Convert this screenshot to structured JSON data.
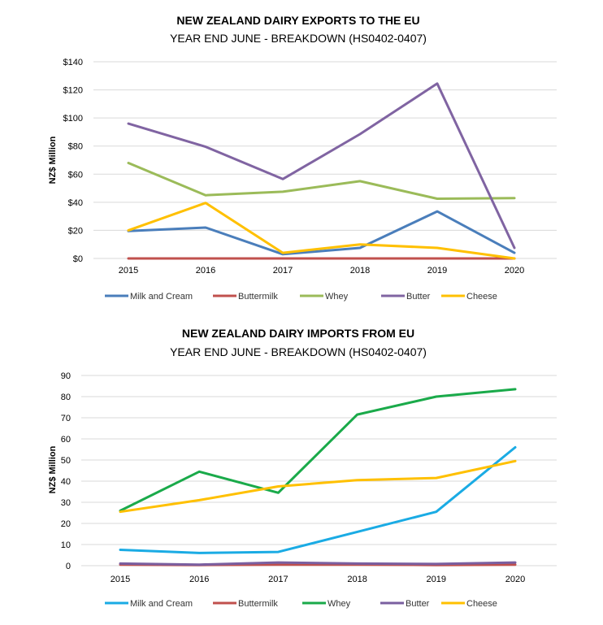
{
  "chart_data": [
    {
      "type": "line",
      "title": "NEW ZEALAND DAIRY EXPORTS TO THE EU",
      "subtitle": "YEAR END JUNE - BREAKDOWN (HS0402-0407)",
      "xlabel": "",
      "ylabel": "NZ$ Million",
      "categories": [
        "2015",
        "2016",
        "2017",
        "2018",
        "2019",
        "2020"
      ],
      "ylim": [
        0,
        140
      ],
      "yticks": [
        0,
        20,
        40,
        60,
        80,
        100,
        120,
        140
      ],
      "ytick_labels": [
        "$0",
        "$20",
        "$40",
        "$60",
        "$80",
        "$100",
        "$120",
        "$140"
      ],
      "grid": true,
      "legend": "bottom",
      "series": [
        {
          "name": "Milk and Cream",
          "color": "#4a7ebb",
          "values": [
            19.5,
            22,
            3,
            7.5,
            33.5,
            4
          ]
        },
        {
          "name": "Buttermilk",
          "color": "#c0504d",
          "values": [
            0,
            0,
            0,
            0,
            0,
            0
          ]
        },
        {
          "name": "Whey",
          "color": "#9bbb59",
          "values": [
            68,
            45,
            47.5,
            55,
            42.5,
            43
          ]
        },
        {
          "name": "Butter",
          "color": "#8064a2",
          "values": [
            96,
            79.5,
            56.5,
            88.5,
            124.5,
            7.5
          ]
        },
        {
          "name": "Cheese",
          "color": "#ffc000",
          "values": [
            20,
            39.5,
            4,
            10,
            7.5,
            0
          ]
        }
      ]
    },
    {
      "type": "line",
      "title": "NEW ZEALAND DAIRY IMPORTS FROM EU",
      "subtitle": "YEAR END JUNE - BREAKDOWN (HS0402-0407)",
      "xlabel": "",
      "ylabel": "NZ$ Million",
      "categories": [
        "2015",
        "2016",
        "2017",
        "2018",
        "2019",
        "2020"
      ],
      "ylim": [
        0,
        90
      ],
      "yticks": [
        0,
        10,
        20,
        30,
        40,
        50,
        60,
        70,
        80,
        90
      ],
      "ytick_labels": [
        "0",
        "10",
        "20",
        "30",
        "40",
        "50",
        "60",
        "70",
        "80",
        "90"
      ],
      "grid": true,
      "legend": "bottom",
      "series": [
        {
          "name": "Milk and Cream",
          "color": "#1aabe4",
          "values": [
            7.5,
            6,
            6.5,
            16,
            25.5,
            56
          ]
        },
        {
          "name": "Buttermilk",
          "color": "#c0504d",
          "values": [
            0.5,
            0.3,
            0.5,
            0.5,
            0.3,
            0.5
          ]
        },
        {
          "name": "Whey",
          "color": "#1aaa4a",
          "values": [
            26,
            44.5,
            34.5,
            71.5,
            80,
            83.5
          ]
        },
        {
          "name": "Butter",
          "color": "#7a5fa0",
          "values": [
            1,
            0.5,
            1.5,
            1,
            0.8,
            1.5
          ]
        },
        {
          "name": "Cheese",
          "color": "#ffc000",
          "values": [
            25.5,
            31,
            37.5,
            40.5,
            41.5,
            49.5
          ]
        }
      ]
    }
  ]
}
